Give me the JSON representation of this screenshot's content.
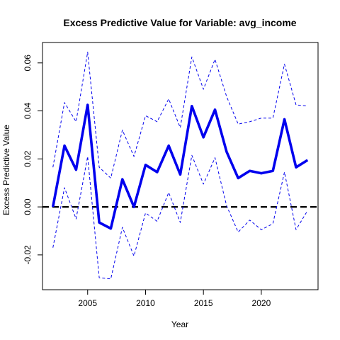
{
  "chart_data": {
    "type": "line",
    "title": "Excess Predictive Value for Variable: avg_income",
    "xlabel": "Year",
    "ylabel": "Excess Predictive Value",
    "xlim": [
      2001.1,
      2024.9
    ],
    "ylim": [
      -0.0345,
      0.0685
    ],
    "x_ticks": [
      2005,
      2010,
      2015,
      2020
    ],
    "y_ticks": [
      -0.02,
      0.0,
      0.02,
      0.04,
      0.06
    ],
    "y_tick_labels": [
      "-0.02",
      "0.00",
      "0.02",
      "0.04",
      "0.06"
    ],
    "grid": false,
    "x": [
      2002,
      2003,
      2004,
      2005,
      2006,
      2007,
      2008,
      2009,
      2010,
      2011,
      2012,
      2013,
      2014,
      2015,
      2016,
      2017,
      2018,
      2019,
      2020,
      2021,
      2022,
      2023,
      2024
    ],
    "series": [
      {
        "role": "estimate",
        "color": "#0000ee",
        "style": "solid-thick",
        "values": [
          0.0,
          0.0255,
          0.0155,
          0.0425,
          -0.0065,
          -0.009,
          0.0115,
          0.0,
          0.0175,
          0.0145,
          0.0255,
          0.0135,
          0.042,
          0.029,
          0.0405,
          0.023,
          0.012,
          0.015,
          0.014,
          0.015,
          0.0365,
          0.0165,
          0.0195
        ]
      },
      {
        "role": "upper-bound",
        "color": "#0000ee",
        "style": "dashed",
        "values": [
          0.0165,
          0.0435,
          0.0355,
          0.0645,
          0.0165,
          0.012,
          0.032,
          0.021,
          0.038,
          0.0355,
          0.045,
          0.033,
          0.0625,
          0.049,
          0.0615,
          0.046,
          0.0345,
          0.0355,
          0.037,
          0.037,
          0.0595,
          0.0425,
          0.042
        ]
      },
      {
        "role": "lower-bound",
        "color": "#0000ee",
        "style": "dashed",
        "values": [
          -0.017,
          0.008,
          -0.005,
          0.021,
          -0.0295,
          -0.03,
          -0.0085,
          -0.0205,
          -0.0025,
          -0.006,
          0.006,
          -0.0065,
          0.0215,
          0.0095,
          0.0205,
          0.0005,
          -0.0105,
          -0.0055,
          -0.0095,
          -0.007,
          0.0145,
          -0.0095,
          -0.0015
        ]
      }
    ],
    "reference_line": {
      "y": 0.0,
      "color": "#000000",
      "style": "dashed"
    }
  }
}
